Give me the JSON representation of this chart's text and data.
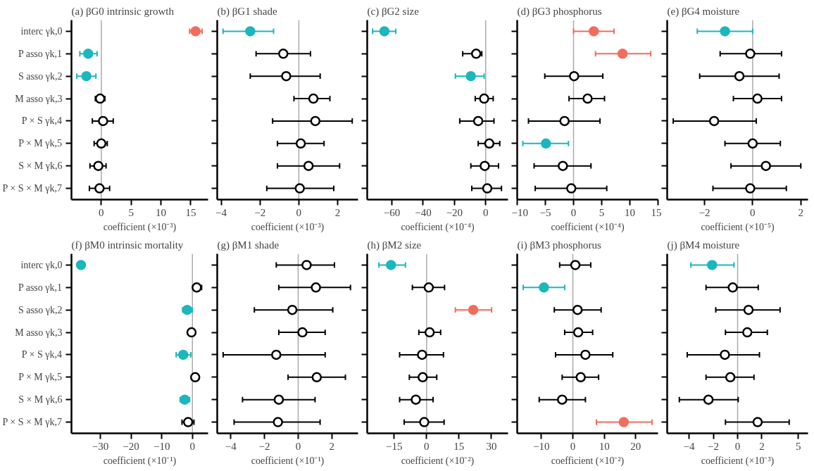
{
  "chart_data": [
    {
      "type": "scatter",
      "title": "(a)    βG0 intrinsic growth",
      "xlabel": "coefficient (×10⁻³)",
      "categories": [
        "interc γk,0",
        "P asso γk,1",
        "S asso γk,2",
        "M asso γk,3",
        "P × S γk,4",
        "P × M γk,5",
        "S × M γk,6",
        "P × S × M γk,7"
      ],
      "values": [
        15.8,
        -2.2,
        -2.5,
        -0.2,
        0.3,
        0,
        -0.5,
        -0.3
      ],
      "colors": [
        "#f26b5e",
        "#1ab7bd",
        "#1ab7bd",
        "#000000",
        "#000000",
        "#000000",
        "#000000",
        "#000000"
      ],
      "errors": [
        [
          14.8,
          16.9
        ],
        [
          -3.6,
          -0.7
        ],
        [
          -4.1,
          -0.9
        ],
        [
          -1.0,
          0.6
        ],
        [
          -1.5,
          2.0
        ],
        [
          -1.2,
          1.0
        ],
        [
          -1.9,
          0.8
        ],
        [
          -2.0,
          1.4
        ]
      ],
      "orientation": "horizontal",
      "xlim": [
        -5,
        17.9
      ],
      "xticks": [
        0,
        5,
        10,
        15
      ],
      "ref_lines": [
        {
          "axis": "x",
          "value": 0,
          "color": "#aaaaaa"
        }
      ],
      "marker": "circle"
    },
    {
      "type": "scatter",
      "title": "(b)  βG1 shade",
      "xlabel": "coefficient (×10⁻³)",
      "categories": [
        null,
        null,
        null,
        null,
        null,
        null,
        null,
        null
      ],
      "values": [
        -2.5,
        -0.8,
        -0.65,
        0.75,
        0.85,
        0.1,
        0.5,
        0.05
      ],
      "colors": [
        "#1ab7bd",
        "#000000",
        "#000000",
        "#000000",
        "#000000",
        "#000000",
        "#000000",
        "#000000"
      ],
      "errors": [
        [
          -3.9,
          -1.3
        ],
        [
          -2.2,
          0.6
        ],
        [
          -2.5,
          1.1
        ],
        [
          -0.25,
          1.6
        ],
        [
          -1.35,
          2.75
        ],
        [
          -1.1,
          1.3
        ],
        [
          -1.1,
          2.1
        ],
        [
          -1.65,
          1.8
        ]
      ],
      "orientation": "horizontal",
      "xlim": [
        -4.2,
        3.05
      ],
      "xticks": [
        -4,
        -2,
        0,
        2
      ],
      "ref_lines": [
        {
          "axis": "x",
          "value": 0,
          "color": "#aaaaaa"
        }
      ],
      "marker": "circle",
      "tick_labels": "x"
    },
    {
      "type": "scatter",
      "title": "(c)  βG2 size",
      "xlabel": "coefficient (×10⁻⁴)",
      "categories": [
        null,
        null,
        null,
        null,
        null,
        null,
        null,
        null
      ],
      "values": [
        -64.8,
        -6.1,
        -9.5,
        -1,
        -4.8,
        2.3,
        -0.6,
        1
      ],
      "colors": [
        "#1ab7bd",
        "#000000",
        "#1ab7bd",
        "#000000",
        "#000000",
        "#000000",
        "#000000",
        "#000000"
      ],
      "errors": [
        [
          -72.4,
          -57.5
        ],
        [
          -14.7,
          -2.5
        ],
        [
          -19.4,
          -1
        ],
        [
          -6.7,
          4.8
        ],
        [
          -16.6,
          5.3
        ],
        [
          -4.8,
          9
        ],
        [
          -9.5,
          8.2
        ],
        [
          -8.9,
          10.1
        ]
      ],
      "orientation": "horizontal",
      "xlim": [
        -75.8,
        14.3
      ],
      "xticks": [
        -60,
        -40,
        -20,
        0
      ],
      "ref_lines": [
        {
          "axis": "x",
          "value": 0,
          "color": "#aaaaaa"
        }
      ],
      "marker": "circle",
      "tick_labels": "x"
    },
    {
      "type": "scatter",
      "title": "(d)  βG3 phosphorus",
      "xlabel": "coefficient (×10⁻⁴)",
      "categories": [
        null,
        null,
        null,
        null,
        null,
        null,
        null,
        null
      ],
      "values": [
        3.6,
        8.7,
        0.1,
        2.5,
        -1.6,
        -4.9,
        -1.9,
        -0.4
      ],
      "colors": [
        "#f26b5e",
        "#f26b5e",
        "#000000",
        "#000000",
        "#000000",
        "#1ab7bd",
        "#000000",
        "#000000"
      ],
      "errors": [
        [
          0,
          7.2
        ],
        [
          3.9,
          13.7
        ],
        [
          -5.1,
          5.2
        ],
        [
          -0.8,
          5.5
        ],
        [
          -8,
          4.7
        ],
        [
          -9,
          -0.9
        ],
        [
          -7,
          3.1
        ],
        [
          -6.8,
          5.9
        ]
      ],
      "orientation": "horizontal",
      "xlim": [
        -10,
        15
      ],
      "xticks": [
        -10,
        -5,
        0,
        5,
        10,
        15
      ],
      "ref_lines": [
        {
          "axis": "x",
          "value": 0,
          "color": "#aaaaaa"
        }
      ],
      "marker": "circle",
      "tick_labels": "x"
    },
    {
      "type": "scatter",
      "title": "(e)  βG4 moisture",
      "xlabel": "coefficient (×10⁻⁵)",
      "categories": [
        null,
        null,
        null,
        null,
        null,
        null,
        null,
        null
      ],
      "values": [
        -1.15,
        -0.1,
        -0.55,
        0.2,
        -1.6,
        0,
        0.55,
        -0.1
      ],
      "colors": [
        "#1ab7bd",
        "#000000",
        "#000000",
        "#000000",
        "#000000",
        "#000000",
        "#000000",
        "#000000"
      ],
      "errors": [
        [
          -2.3,
          0
        ],
        [
          -1.35,
          1.2
        ],
        [
          -2.2,
          1.1
        ],
        [
          -0.8,
          1.2
        ],
        [
          -3.3,
          0.15
        ],
        [
          -1.15,
          1.15
        ],
        [
          -0.9,
          2.0
        ],
        [
          -1.65,
          1.4
        ]
      ],
      "orientation": "horizontal",
      "xlim": [
        -3.55,
        2.3
      ],
      "xticks": [
        -2,
        0,
        2
      ],
      "ref_lines": [
        {
          "axis": "x",
          "value": 0,
          "color": "#aaaaaa"
        }
      ],
      "marker": "circle",
      "tick_labels": "x"
    },
    {
      "type": "scatter",
      "title": "(f)          βM0 intrinsic mortality",
      "xlabel": "coefficient (×10⁻¹)",
      "categories": [
        "interc γk,0",
        "P asso γk,1",
        "S asso γk,2",
        "M asso γk,3",
        "P × S γk,4",
        "P × M γk,5",
        "S × M γk,6",
        "P × S × M γk,7"
      ],
      "values": [
        -36.3,
        1.4,
        -1.7,
        -0.3,
        -3.0,
        0.9,
        -2.5,
        -1.4
      ],
      "colors": [
        "#1ab7bd",
        "#000000",
        "#1ab7bd",
        "#000000",
        "#1ab7bd",
        "#000000",
        "#1ab7bd",
        "#000000"
      ],
      "errors": [
        null,
        [
          0.3,
          3.0
        ],
        [
          -3.2,
          0
        ],
        null,
        [
          -5.3,
          -0.5
        ],
        null,
        [
          -4,
          -0.9
        ],
        [
          -3.4,
          0.5
        ]
      ],
      "orientation": "horizontal",
      "xlim": [
        -39.4,
        5.1
      ],
      "xticks": [
        -30,
        -20,
        -10,
        0
      ],
      "ref_lines": [
        {
          "axis": "x",
          "value": 0,
          "color": "#aaaaaa"
        }
      ],
      "marker": "circle"
    },
    {
      "type": "scatter",
      "title": "(g)  βM1 shade",
      "xlabel": "coefficient (×10⁻¹)",
      "categories": [
        null,
        null,
        null,
        null,
        null,
        null,
        null,
        null
      ],
      "values": [
        0.5,
        1.05,
        -0.35,
        0.25,
        -1.3,
        1.1,
        -1.15,
        -1.2
      ],
      "colors": [
        "#000000",
        "#000000",
        "#000000",
        "#000000",
        "#000000",
        "#000000",
        "#000000",
        "#000000"
      ],
      "errors": [
        [
          -1.3,
          2.15
        ],
        [
          -1.15,
          3.1
        ],
        [
          -2.6,
          2.05
        ],
        [
          -1.15,
          1.6
        ],
        [
          -4.45,
          1.6
        ],
        [
          -0.6,
          2.8
        ],
        [
          -3.3,
          1.0
        ],
        [
          -3.8,
          1.3
        ]
      ],
      "orientation": "horizontal",
      "xlim": [
        -4.8,
        3.55
      ],
      "xticks": [
        -4,
        -2,
        0,
        2
      ],
      "ref_lines": [
        {
          "axis": "x",
          "value": 0,
          "color": "#aaaaaa"
        }
      ],
      "marker": "circle",
      "tick_labels": "x"
    },
    {
      "type": "scatter",
      "title": "(h)  βM2 size",
      "xlabel": "coefficient (×10⁻²)",
      "categories": [
        null,
        null,
        null,
        null,
        null,
        null,
        null,
        null
      ],
      "values": [
        -16.5,
        1,
        21.6,
        1.4,
        -2.1,
        -1.8,
        -5,
        -1.1
      ],
      "colors": [
        "#1ab7bd",
        "#000000",
        "#f26b5e",
        "#000000",
        "#000000",
        "#000000",
        "#000000",
        "#000000"
      ],
      "errors": [
        [
          -22.1,
          -9.8
        ],
        [
          -6.6,
          8.3
        ],
        [
          13.3,
          30.1
        ],
        [
          -3.6,
          6.5
        ],
        [
          -12.5,
          7.8
        ],
        [
          -8,
          4.7
        ],
        [
          -12.5,
          3
        ],
        [
          -10.4,
          8.1
        ]
      ],
      "orientation": "horizontal",
      "xlim": [
        -27.5,
        37.7
      ],
      "xticks": [
        -15,
        0,
        15,
        30
      ],
      "ref_lines": [
        {
          "axis": "x",
          "value": 0,
          "color": "#aaaaaa"
        }
      ],
      "marker": "circle",
      "tick_labels": "x"
    },
    {
      "type": "scatter",
      "title": "(i)  βM3 phosphorus",
      "xlabel": "coefficient (×10⁻²)",
      "categories": [
        null,
        null,
        null,
        null,
        null,
        null,
        null,
        null
      ],
      "values": [
        0.8,
        -9.2,
        1.5,
        1.7,
        4,
        2.5,
        -3.4,
        16.2
      ],
      "colors": [
        "#000000",
        "#1ab7bd",
        "#000000",
        "#000000",
        "#000000",
        "#000000",
        "#000000",
        "#f26b5e"
      ],
      "errors": [
        [
          -4.2,
          5.7
        ],
        [
          -15.8,
          -2.6
        ],
        [
          -5.9,
          9
        ],
        [
          -2.6,
          6.3
        ],
        [
          -5.5,
          12.7
        ],
        [
          -3.4,
          8.2
        ],
        [
          -10.7,
          4
        ],
        [
          7.5,
          25.2
        ]
      ],
      "orientation": "horizontal",
      "xlim": [
        -17.7,
        27.1
      ],
      "xticks": [
        -10,
        0,
        10,
        20
      ],
      "ref_lines": [
        {
          "axis": "x",
          "value": 0,
          "color": "#aaaaaa"
        }
      ],
      "marker": "circle",
      "tick_labels": "x"
    },
    {
      "type": "scatter",
      "title": "(j)  βM4 moisture",
      "xlabel": "coefficient (×10⁻³)",
      "categories": [
        null,
        null,
        null,
        null,
        null,
        null,
        null,
        null
      ],
      "values": [
        -2.1,
        -0.4,
        0.9,
        0.8,
        -1.05,
        -0.6,
        -2.4,
        1.65
      ],
      "colors": [
        "#1ab7bd",
        "#000000",
        "#000000",
        "#000000",
        "#000000",
        "#000000",
        "#000000",
        "#000000"
      ],
      "errors": [
        [
          -3.85,
          -0.3
        ],
        [
          -2.6,
          1.7
        ],
        [
          -1.8,
          3.5
        ],
        [
          -1,
          2.45
        ],
        [
          -4.15,
          1.8
        ],
        [
          -2.6,
          1.35
        ],
        [
          -4.8,
          0.05
        ],
        [
          -1,
          4.25
        ]
      ],
      "orientation": "horizontal",
      "xlim": [
        -5.8,
        5.8
      ],
      "xticks": [
        -4,
        -2,
        0,
        2,
        5
      ],
      "ref_lines": [
        {
          "axis": "x",
          "value": 0,
          "color": "#aaaaaa"
        }
      ],
      "marker": "circle",
      "tick_labels": "x"
    }
  ]
}
